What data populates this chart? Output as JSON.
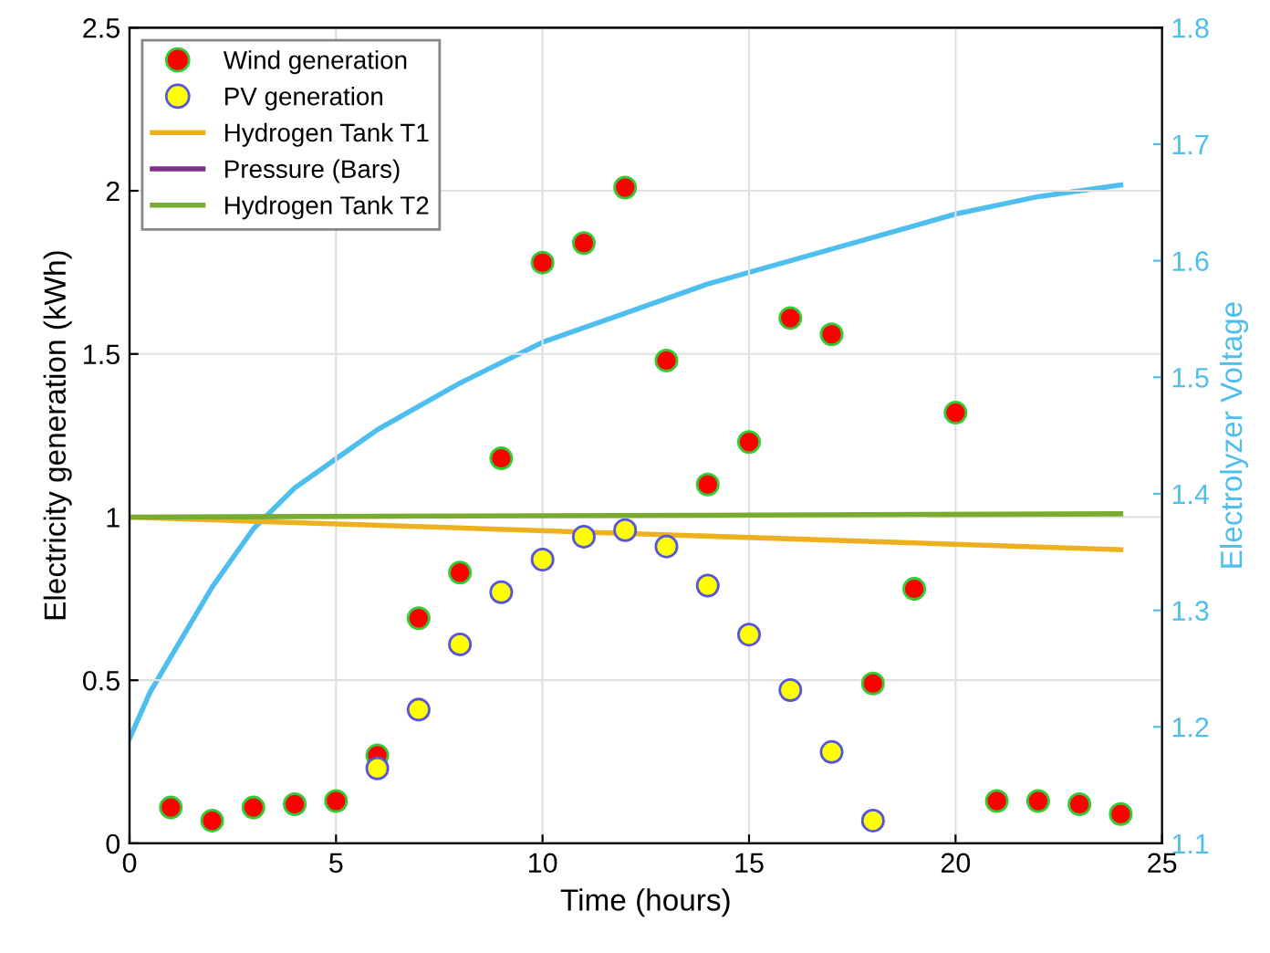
{
  "chart_data": {
    "type": "scatter",
    "xlabel": "Time (hours)",
    "ylabel": "Electricity generation (kWh)",
    "y2label": "Electrolyzer Voltage",
    "xlim": [
      0,
      25
    ],
    "xticks": [
      0,
      5,
      10,
      15,
      20,
      25
    ],
    "ylim": [
      0,
      2.5
    ],
    "yticks": [
      0,
      0.5,
      1,
      1.5,
      2,
      2.5
    ],
    "y2lim": [
      1.1,
      1.8
    ],
    "y2ticks": [
      1.1,
      1.2,
      1.3,
      1.4,
      1.5,
      1.6,
      1.7,
      1.8
    ],
    "grid": true,
    "legend": "top left",
    "series": [
      {
        "name": "Wind generation",
        "marker": "circle",
        "color": "#ff0000",
        "x": [
          1,
          2,
          3,
          4,
          5,
          6,
          7,
          8,
          9,
          10,
          11,
          12,
          13,
          14,
          15,
          16,
          17,
          18,
          19,
          20,
          21,
          22,
          23,
          24
        ],
        "values": [
          0.11,
          0.07,
          0.11,
          0.12,
          0.13,
          0.27,
          0.69,
          0.83,
          1.18,
          1.78,
          1.84,
          2.01,
          1.48,
          1.1,
          1.23,
          1.61,
          1.56,
          0.49,
          0.78,
          1.32,
          0.13,
          0.13,
          0.12,
          0.09
        ]
      },
      {
        "name": "PV generation",
        "marker": "circle",
        "color": "#ffff00",
        "x": [
          6,
          7,
          8,
          9,
          10,
          11,
          12,
          13,
          14,
          15,
          16,
          17,
          18
        ],
        "values": [
          0.23,
          0.41,
          0.61,
          0.77,
          0.87,
          0.94,
          0.96,
          0.91,
          0.79,
          0.64,
          0.47,
          0.28,
          0.07
        ]
      },
      {
        "name": "Hydrogen Tank T1",
        "type": "line",
        "color": "#edb120",
        "x": [
          0,
          24
        ],
        "values": [
          1.0,
          0.9
        ]
      },
      {
        "name": "Pressure (Bars)",
        "type": "line",
        "color": "#7e2f8e"
      },
      {
        "name": "Hydrogen Tank T2",
        "type": "line",
        "color": "#77ac30",
        "x": [
          0,
          24
        ],
        "values": [
          1.0,
          1.01
        ]
      },
      {
        "type": "line",
        "axis": "y2",
        "color": "#4dbeee",
        "x": [
          0,
          0.5,
          1,
          2,
          3,
          4,
          5,
          6,
          8,
          10,
          12,
          14,
          16,
          18,
          20,
          22,
          24
        ],
        "values": [
          1.19,
          1.23,
          1.26,
          1.32,
          1.37,
          1.405,
          1.43,
          1.455,
          1.495,
          1.53,
          1.555,
          1.58,
          1.6,
          1.62,
          1.64,
          1.655,
          1.665
        ]
      }
    ]
  }
}
